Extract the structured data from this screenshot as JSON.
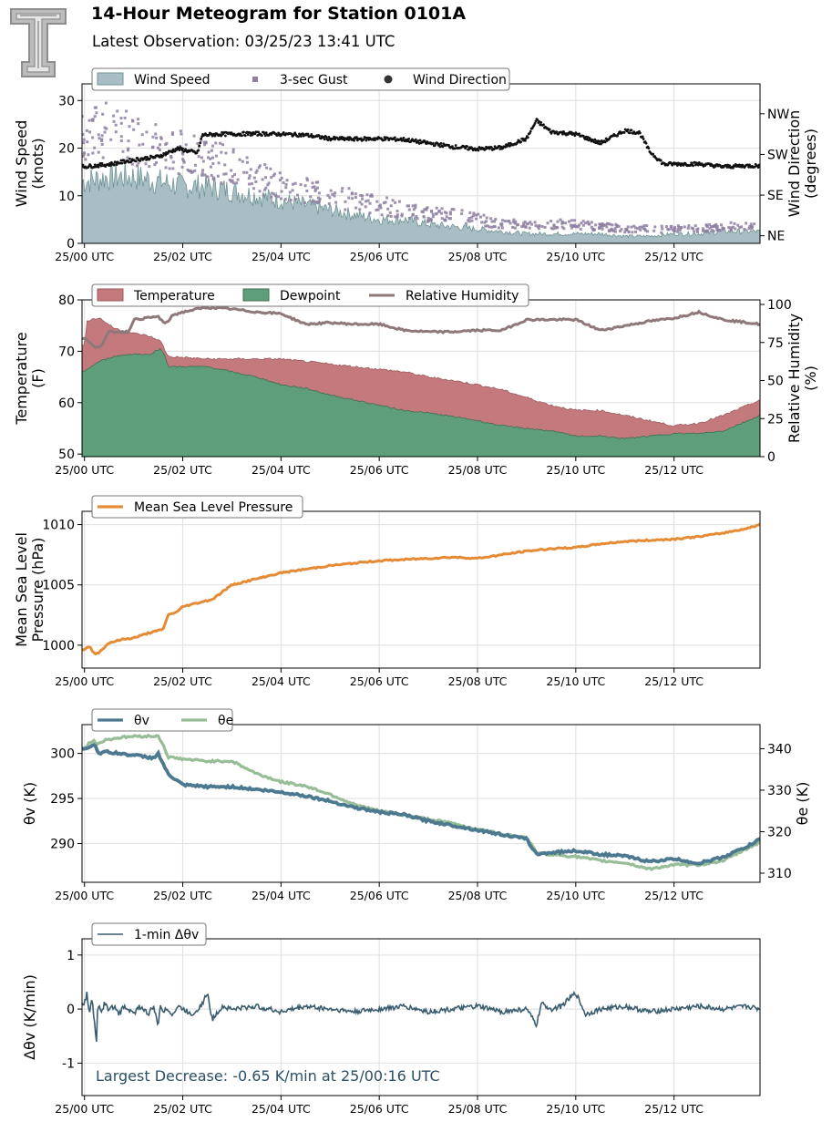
{
  "header": {
    "title": "14-Hour Meteogram for Station 0101A",
    "subtitle": "Latest Observation: 03/25/23 13:41 UTC",
    "logo_letter": "T"
  },
  "colors": {
    "wind_speed_fill": "#a9bec4",
    "wind_speed_line": "#6e9496",
    "gust": "#8e7fa1",
    "wind_dir": "#111111",
    "temperature": "#c47a7c",
    "temperature_line": "#9c5a5c",
    "dewpoint": "#5e9e7a",
    "dewpoint_line": "#3f6e52",
    "rh": "#8f7879",
    "pressure": "#e58a35",
    "theta_v": "#4c7890",
    "theta_e": "#97bd96",
    "dtheta": "#3a5d70",
    "annotation": "#2b4f64",
    "grid": "#e3e3e3"
  },
  "chart_data": [
    {
      "type": "area",
      "id": "wind",
      "ylabel": [
        "Wind Speed",
        "(knots)"
      ],
      "y2label": [
        "Wind Direction",
        "(degrees)"
      ],
      "ylim": [
        0,
        33.5
      ],
      "yticks": [
        0,
        10,
        20,
        30
      ],
      "y2ticks": [
        "NE",
        "SE",
        "SW",
        "NW"
      ],
      "y2tick_values": [
        45,
        135,
        225,
        315
      ],
      "xlim": [
        -0.05,
        13.75
      ],
      "xticks": [
        "25/00 UTC",
        "25/02 UTC",
        "25/04 UTC",
        "25/06 UTC",
        "25/08 UTC",
        "25/10 UTC",
        "25/12 UTC"
      ],
      "xtick_hours": [
        0,
        2,
        4,
        6,
        8,
        10,
        12
      ],
      "legend": [
        "Wind Speed",
        "3-sec Gust",
        "Wind Direction"
      ],
      "legend_placement": "top-left",
      "grid": true,
      "series": [
        {
          "name": "Wind Speed",
          "x_hours": [
            0,
            0.5,
            1,
            1.5,
            2,
            2.5,
            3,
            3.5,
            4,
            4.5,
            5,
            5.5,
            6,
            6.5,
            7,
            7.5,
            8,
            8.5,
            9,
            9.5,
            10,
            10.5,
            11,
            11.5,
            12,
            12.5,
            13,
            13.5,
            13.7
          ],
          "values": [
            13,
            14,
            14,
            13,
            12,
            12,
            11,
            10,
            9,
            8,
            7,
            6,
            5,
            5,
            4,
            3.5,
            3,
            2.5,
            2,
            2,
            2,
            2,
            1.5,
            1.5,
            2,
            2,
            2.5,
            2.5,
            2.5
          ]
        },
        {
          "name": "3-sec Gust",
          "x_hours": [
            0,
            0.5,
            1,
            1.5,
            2,
            2.5,
            3,
            3.5,
            4,
            4.5,
            5,
            5.5,
            6,
            6.5,
            7,
            7.5,
            8,
            8.5,
            9,
            9.5,
            10,
            10.5,
            11,
            11.5,
            12,
            12.5,
            13,
            13.5,
            13.7
          ],
          "values": [
            22,
            24,
            22,
            20,
            19,
            18,
            16,
            14,
            12,
            11,
            10,
            9,
            8,
            7,
            6,
            6,
            5,
            4,
            4,
            4,
            4,
            3.5,
            3,
            3,
            3,
            3,
            3.5,
            3.5,
            3.5
          ]
        },
        {
          "name": "Wind Direction",
          "x_hours": [
            0,
            0.5,
            1,
            1.5,
            1.9,
            2.3,
            2.4,
            2.8,
            3,
            3.5,
            4,
            4.5,
            5,
            5.5,
            6,
            6.5,
            7,
            7.5,
            8,
            8.5,
            9,
            9.2,
            9.5,
            10,
            10.5,
            11,
            11.3,
            11.5,
            11.8,
            12,
            12.5,
            13,
            13.5,
            13.7
          ],
          "values": [
            198,
            203,
            213,
            220,
            238,
            228,
            268,
            270,
            270,
            271,
            270,
            268,
            260,
            259,
            260,
            258,
            250,
            242,
            237,
            240,
            260,
            300,
            275,
            270,
            250,
            278,
            273,
            232,
            203,
            204,
            204,
            198,
            200,
            200
          ]
        }
      ]
    },
    {
      "type": "area",
      "id": "temp",
      "ylabel": [
        "Temperature",
        "(F)"
      ],
      "y2label": [
        "Relative Humidity",
        "(%)"
      ],
      "ylim": [
        49.5,
        80
      ],
      "yticks": [
        50,
        60,
        70,
        80
      ],
      "y2lim": [
        0,
        103
      ],
      "y2ticks": [
        0,
        25,
        50,
        75,
        100
      ],
      "xlim": [
        -0.05,
        13.75
      ],
      "xticks": [
        "25/00 UTC",
        "25/02 UTC",
        "25/04 UTC",
        "25/06 UTC",
        "25/08 UTC",
        "25/10 UTC",
        "25/12 UTC"
      ],
      "xtick_hours": [
        0,
        2,
        4,
        6,
        8,
        10,
        12
      ],
      "legend": [
        "Temperature",
        "Dewpoint",
        "Relative Humidity"
      ],
      "legend_placement": "top-left",
      "grid": true,
      "series": [
        {
          "name": "Temperature",
          "x_hours": [
            0,
            0.05,
            0.3,
            0.6,
            1,
            1.3,
            1.55,
            1.7,
            2,
            2.5,
            3,
            3.5,
            4,
            4.5,
            5,
            5.5,
            6,
            6.5,
            7,
            7.5,
            8,
            8.5,
            9,
            9.5,
            10,
            10.5,
            11,
            11.5,
            12,
            12.5,
            13,
            13.5,
            13.75
          ],
          "values": [
            71,
            76,
            76.5,
            74.5,
            73.5,
            73,
            72,
            69,
            68.8,
            68.5,
            68.5,
            68.5,
            68.5,
            68,
            67.5,
            67,
            66.5,
            66,
            65,
            64.3,
            63.5,
            62.5,
            61,
            59.5,
            58.5,
            58.5,
            57.5,
            56.5,
            55.5,
            56,
            57.5,
            59.5,
            60.5
          ]
        },
        {
          "name": "Dewpoint",
          "x_hours": [
            0,
            0.05,
            0.3,
            0.6,
            1,
            1.3,
            1.55,
            1.65,
            1.7,
            2,
            2.5,
            3,
            3.5,
            4,
            4.5,
            5,
            5.5,
            6,
            6.5,
            7,
            7.5,
            8,
            8.5,
            9,
            9.5,
            10,
            10.5,
            11,
            11.5,
            12,
            12.5,
            13,
            13.5,
            13.75
          ],
          "values": [
            66,
            66.5,
            68,
            69,
            69.5,
            69.3,
            70.5,
            69,
            67,
            67,
            67,
            66,
            65,
            63.5,
            62.8,
            61.5,
            60.5,
            59.5,
            58.5,
            58,
            57.3,
            56.5,
            55.5,
            55,
            54.5,
            53.5,
            53.5,
            53,
            53.5,
            54,
            54,
            54.5,
            56.5,
            57.5
          ]
        },
        {
          "name": "Relative Humidity",
          "x_hours": [
            0,
            0.2,
            0.35,
            0.5,
            0.9,
            1,
            1.5,
            1.65,
            1.8,
            2,
            2.3,
            2.5,
            3,
            3.5,
            4,
            4.5,
            5,
            5.5,
            6,
            6.5,
            7,
            7.5,
            8,
            8.5,
            9,
            9.5,
            10,
            10.5,
            11,
            11.5,
            12,
            12.5,
            13,
            13.5,
            13.75
          ],
          "values": [
            78,
            72,
            73,
            82,
            82,
            90,
            92,
            87,
            93,
            95,
            97,
            98,
            97,
            95,
            94,
            87,
            88,
            87,
            87,
            83,
            82,
            82,
            83,
            83,
            90,
            90,
            90,
            83,
            86,
            89,
            91,
            95,
            90,
            88,
            87
          ]
        }
      ]
    },
    {
      "type": "line",
      "id": "pressure",
      "ylabel": [
        "Mean Sea Level",
        "Pressure (hPa)"
      ],
      "ylim": [
        998.1,
        1011.1
      ],
      "yticks": [
        1000,
        1005,
        1010
      ],
      "xlim": [
        -0.05,
        13.75
      ],
      "xticks": [
        "25/00 UTC",
        "25/02 UTC",
        "25/04 UTC",
        "25/06 UTC",
        "25/08 UTC",
        "25/10 UTC",
        "25/12 UTC"
      ],
      "xtick_hours": [
        0,
        2,
        4,
        6,
        8,
        10,
        12
      ],
      "legend": [
        "Mean Sea Level Pressure"
      ],
      "legend_placement": "top-left",
      "grid": true,
      "series": [
        {
          "name": "Mean Sea Level Pressure",
          "x_hours": [
            0,
            0.1,
            0.2,
            0.3,
            0.5,
            0.8,
            1,
            1.3,
            1.5,
            1.6,
            1.7,
            1.9,
            2,
            2.3,
            2.6,
            2.8,
            3,
            3.5,
            4,
            4.5,
            5,
            5.5,
            6,
            6.5,
            7,
            7.5,
            8,
            8.5,
            9,
            9.5,
            10,
            10.5,
            11,
            11.5,
            12,
            12.5,
            13,
            13.5,
            13.75
          ],
          "values": [
            999.6,
            999.9,
            999.3,
            999.4,
            1000.2,
            1000.5,
            1000.6,
            1001,
            1001.2,
            1001.3,
            1002.5,
            1002.8,
            1003.2,
            1003.5,
            1003.8,
            1004.4,
            1005,
            1005.5,
            1006,
            1006.3,
            1006.6,
            1006.8,
            1007,
            1007.1,
            1007.2,
            1007.3,
            1007.2,
            1007.5,
            1007.8,
            1008,
            1008.1,
            1008.4,
            1008.6,
            1008.7,
            1008.8,
            1009,
            1009.3,
            1009.7,
            1010
          ]
        }
      ]
    },
    {
      "type": "line",
      "id": "theta",
      "ylabel": [
        "θv (K)"
      ],
      "y2label": [
        "θe (K)"
      ],
      "ylim": [
        285.7,
        303.2
      ],
      "yticks": [
        290,
        295,
        300
      ],
      "y2lim": [
        307.8,
        345.8
      ],
      "y2ticks": [
        310,
        320,
        330,
        340
      ],
      "xlim": [
        -0.05,
        13.75
      ],
      "xticks": [
        "25/00 UTC",
        "25/02 UTC",
        "25/04 UTC",
        "25/06 UTC",
        "25/08 UTC",
        "25/10 UTC",
        "25/12 UTC"
      ],
      "xtick_hours": [
        0,
        2,
        4,
        6,
        8,
        10,
        12
      ],
      "legend": [
        "θv",
        "θe"
      ],
      "legend_placement": "top-left",
      "grid": true,
      "series": [
        {
          "name": "θv",
          "axis": "left",
          "x_hours": [
            0,
            0.2,
            0.3,
            0.4,
            1,
            1.4,
            1.5,
            1.7,
            2,
            2.5,
            3,
            3.5,
            4,
            4.5,
            5,
            5.5,
            6,
            6.5,
            7,
            7.5,
            8,
            8.5,
            9,
            9.2,
            9.5,
            10,
            10.5,
            11,
            11.5,
            12,
            12.5,
            13,
            13.5,
            13.75
          ],
          "values": [
            300.5,
            301,
            300,
            300.2,
            299.8,
            299.5,
            300,
            297.7,
            296.5,
            296.3,
            296.3,
            296,
            295.7,
            295.3,
            294.7,
            294,
            293.5,
            293.2,
            292.5,
            292,
            291.5,
            291,
            290.5,
            288.8,
            289,
            289.2,
            288.8,
            288.6,
            288,
            288.3,
            287.8,
            288.5,
            289.7,
            290.5
          ]
        },
        {
          "name": "θe",
          "axis": "right",
          "x_hours": [
            0,
            0.1,
            0.2,
            0.25,
            0.4,
            0.6,
            1,
            1.5,
            1.6,
            1.7,
            2,
            2.5,
            3,
            3.5,
            4,
            4.5,
            5,
            5.5,
            6,
            6.5,
            7,
            7.5,
            8,
            8.5,
            9,
            9.2,
            9.5,
            10,
            10.5,
            11,
            11.5,
            12,
            12.5,
            13,
            13.5,
            13.75
          ],
          "values": [
            340,
            341.5,
            342,
            341,
            342,
            342.5,
            343,
            343,
            341,
            338,
            337.5,
            337,
            337,
            334,
            332,
            331,
            329,
            326.5,
            325,
            324,
            323,
            322,
            320.5,
            319.5,
            318.5,
            315,
            314.5,
            314,
            313,
            312.5,
            311,
            312,
            312,
            313,
            316,
            317.5
          ]
        }
      ]
    },
    {
      "type": "line",
      "id": "dtheta",
      "ylabel": [
        "Δθv (K/min)"
      ],
      "ylim": [
        -1.6,
        1.3
      ],
      "yticks": [
        -1,
        0,
        1
      ],
      "xlim": [
        -0.05,
        13.75
      ],
      "xticks": [
        "25/00 UTC",
        "25/02 UTC",
        "25/04 UTC",
        "25/06 UTC",
        "25/08 UTC",
        "25/10 UTC",
        "25/12 UTC"
      ],
      "xtick_hours": [
        0,
        2,
        4,
        6,
        8,
        10,
        12
      ],
      "legend": [
        "1-min Δθv"
      ],
      "legend_placement": "top-left",
      "annotation": "Largest Decrease: -0.65 K/min at 25/00:16 UTC",
      "grid": true,
      "series": [
        {
          "name": "1-min Δθv",
          "x_hours": [
            0,
            0.05,
            0.1,
            0.15,
            0.2,
            0.25,
            0.27,
            0.3,
            0.35,
            0.4,
            0.5,
            0.6,
            0.7,
            0.8,
            0.9,
            1,
            1.1,
            1.2,
            1.3,
            1.4,
            1.5,
            1.55,
            1.6,
            1.7,
            1.8,
            1.9,
            2,
            2.2,
            2.4,
            2.5,
            2.6,
            2.8,
            3,
            3.5,
            4,
            4.5,
            5,
            5.5,
            6,
            6.5,
            7,
            7.5,
            8,
            8.5,
            9,
            9.2,
            9.3,
            9.5,
            9.7,
            10,
            10.2,
            10.5,
            11,
            11.5,
            12,
            12.5,
            13,
            13.5,
            13.75
          ],
          "values": [
            0.1,
            0.3,
            -0.1,
            0.2,
            -0.2,
            -0.65,
            0.1,
            0.05,
            -0.1,
            0.1,
            0,
            0.05,
            -0.1,
            0.05,
            0,
            -0.1,
            0.05,
            0,
            -0.1,
            0.05,
            -0.3,
            0.1,
            -0.05,
            0,
            -0.1,
            0.05,
            0,
            -0.1,
            0.1,
            0.3,
            -0.2,
            0.05,
            0,
            0.05,
            -0.05,
            0.05,
            0,
            -0.05,
            0,
            0.05,
            -0.05,
            0,
            0.05,
            -0.05,
            0,
            -0.3,
            0.1,
            0,
            0.05,
            0.3,
            -0.1,
            0,
            0.05,
            -0.05,
            0,
            0.05,
            0,
            0.05,
            0
          ]
        }
      ]
    }
  ]
}
